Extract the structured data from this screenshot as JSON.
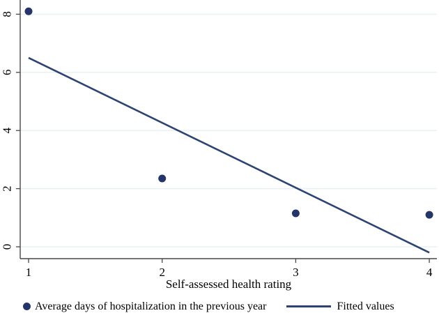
{
  "colors": {
    "marker": "#25356a",
    "fitted_line": "#2d4472",
    "grid": "#eaf1f4",
    "axis": "#474747",
    "text": "#000000",
    "background": "#ffffff"
  },
  "chart_data": {
    "type": "scatter",
    "title": "",
    "xlabel": "Self-assessed health rating",
    "ylabel": "",
    "xticks": [
      1,
      2,
      3,
      4
    ],
    "yticks": [
      0,
      2,
      4,
      6,
      8
    ],
    "xlim": [
      0.94,
      4.06
    ],
    "ylim": [
      -0.4,
      8.5
    ],
    "grid": "horizontal-only",
    "y_tick_label_angle": 90,
    "legend_position": "bottom",
    "series": [
      {
        "name": "Average days of hospitalization in the previous year",
        "type": "scatter",
        "marker": "filled-circle",
        "x": [
          1,
          2,
          3,
          4
        ],
        "y": [
          8.1,
          2.35,
          1.15,
          1.1
        ]
      },
      {
        "name": "Fitted values",
        "type": "line",
        "x": [
          1,
          4
        ],
        "y": [
          6.5,
          -0.2
        ]
      }
    ]
  },
  "legend": {
    "items": [
      {
        "label": "Average days of hospitalization in the previous year",
        "swatch": "dot"
      },
      {
        "label": "Fitted values",
        "swatch": "line"
      }
    ]
  }
}
